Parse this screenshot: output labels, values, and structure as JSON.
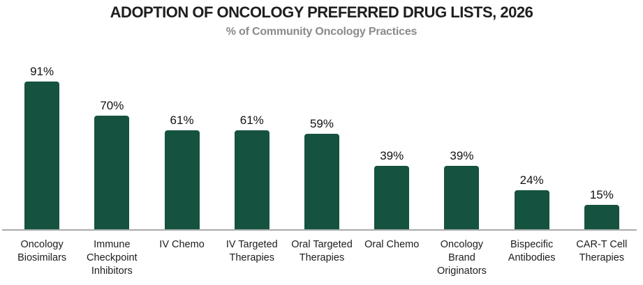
{
  "header": {
    "title": "ADOPTION OF ONCOLOGY PREFERRED DRUG LISTS, 2026",
    "subtitle": "% of Community Oncology Practices"
  },
  "chart_data": {
    "type": "bar",
    "title": "ADOPTION OF ONCOLOGY PREFERRED DRUG LISTS, 2026",
    "subtitle": "% of Community Oncology Practices",
    "categories": [
      "Oncology Biosimilars",
      "Immune Checkpoint Inhibitors",
      "IV Chemo",
      "IV Targeted Therapies",
      "Oral Targeted Therapies",
      "Oral Chemo",
      "Oncology Brand Originators",
      "Bispecific Antibodies",
      "CAR-T Cell Therapies"
    ],
    "values": [
      91,
      70,
      61,
      61,
      59,
      39,
      39,
      24,
      15
    ],
    "value_labels": [
      "91%",
      "70%",
      "61%",
      "61%",
      "59%",
      "39%",
      "39%",
      "24%",
      "15%"
    ],
    "xlabel": "",
    "ylabel": "",
    "ylim": [
      0,
      100
    ],
    "grid": false,
    "legend": false,
    "data_labels_position": "above-bar",
    "bar_color": "#155240",
    "axis_line_color": "#a9a9a9",
    "title_color": "#1e1e1e",
    "subtitle_color": "#8a8a8a",
    "label_color": "#1c1c1c"
  }
}
